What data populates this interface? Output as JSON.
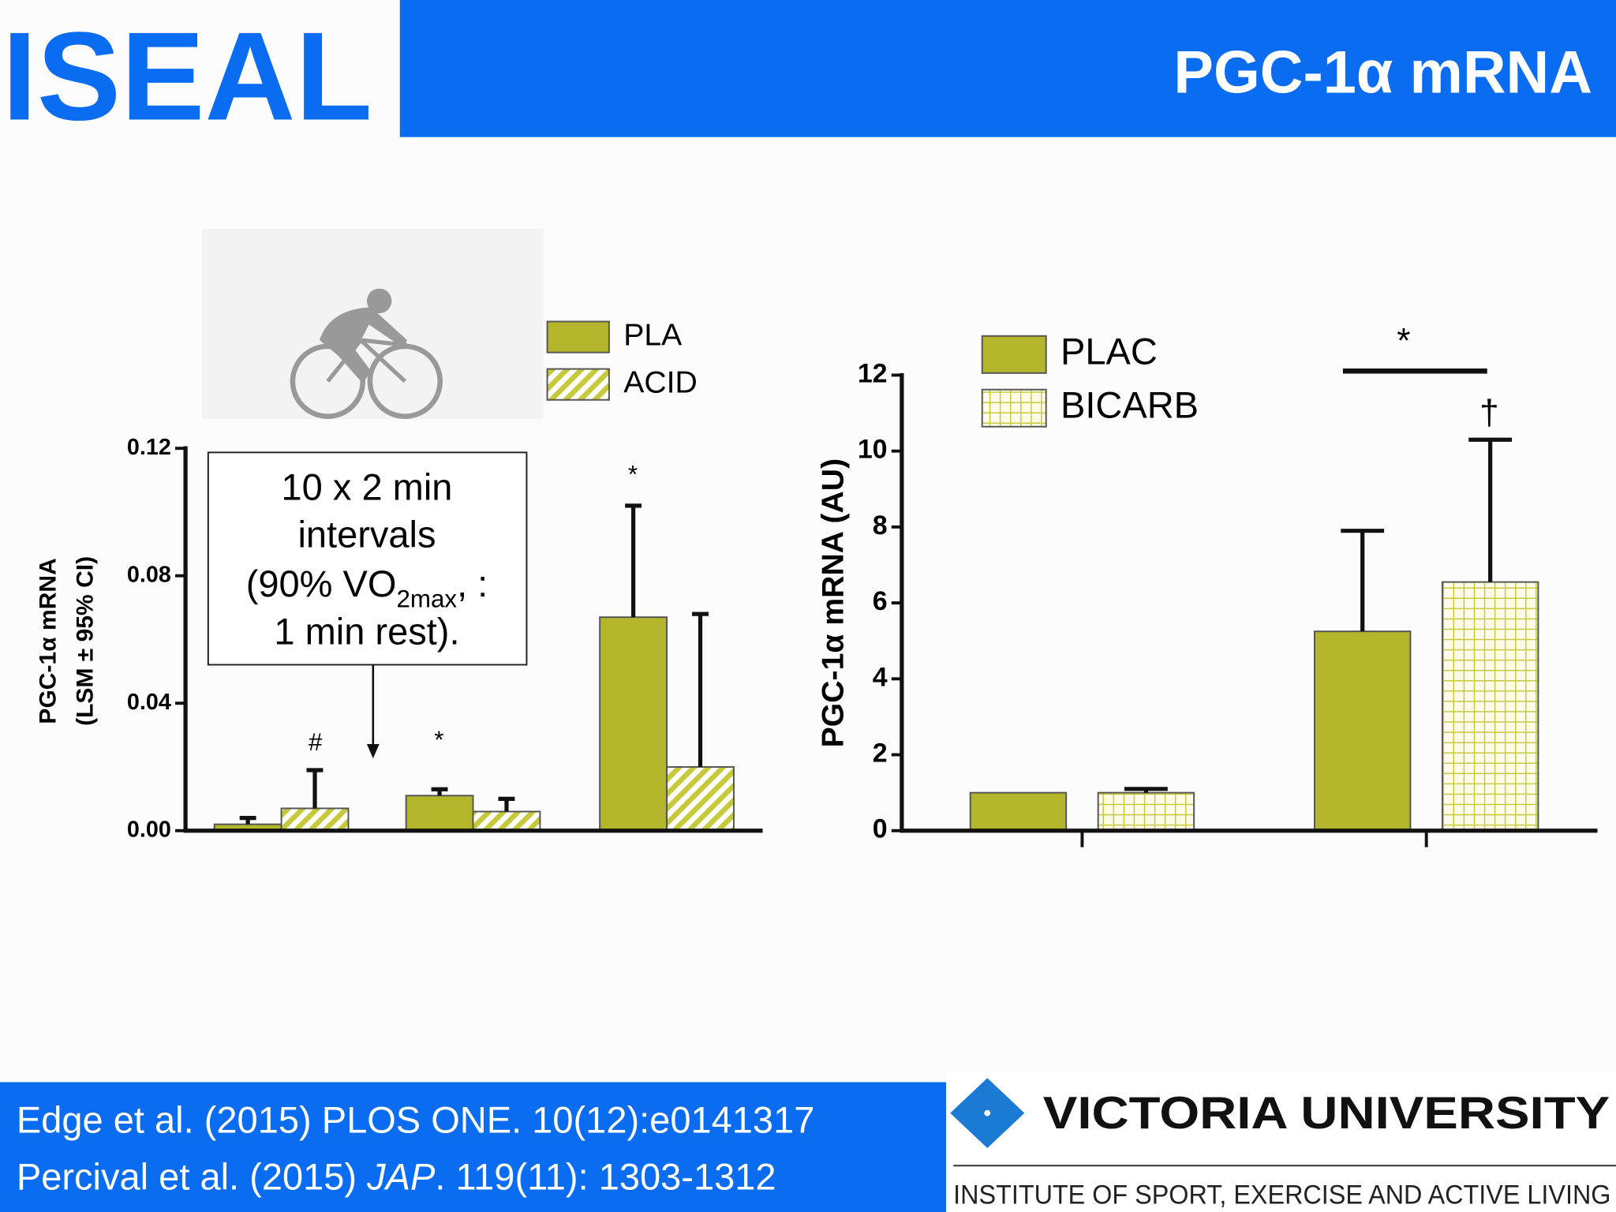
{
  "header": {
    "logo": "ISEAL",
    "title": "PGC-1α mRNA"
  },
  "chart_data": [
    {
      "type": "bar",
      "y_label": [
        "PGC-1α mRNA",
        "(LSM ± 95% CI)"
      ],
      "categories": [
        null,
        null,
        null
      ],
      "series": [
        {
          "name": "PLA",
          "color": "#b3b62a",
          "pattern": "solid",
          "values": [
            0.002,
            0.011,
            0.067
          ],
          "errors": [
            0.002,
            0.002,
            0.035
          ]
        },
        {
          "name": "ACID",
          "color": "#c5c93a",
          "pattern": "diagonal",
          "values": [
            0.007,
            0.006,
            0.02
          ],
          "errors": [
            0.012,
            0.004,
            0.048
          ]
        }
      ],
      "ylim": [
        0,
        0.12
      ],
      "yticks": [
        {
          "value": 0,
          "label": "0.00"
        },
        {
          "value": 0.04,
          "label": "0.04"
        },
        {
          "value": 0.08,
          "label": "0.08"
        },
        {
          "value": 0.12,
          "label": "0.12"
        }
      ],
      "annotations": [
        "#",
        "*",
        "*"
      ],
      "box_lines": [
        "10 x 2 min",
        "intervals",
        [
          "(90% VO",
          "2max",
          ", :"
        ],
        "1 min rest)."
      ]
    },
    {
      "type": "bar",
      "y_label": [
        "PGC-1α mRNA  (AU)"
      ],
      "categories": [
        null,
        null
      ],
      "series": [
        {
          "name": "PLAC",
          "color": "#b3b62a",
          "pattern": "solid",
          "values": [
            1.0,
            5.25
          ],
          "errors": [
            null,
            2.65
          ]
        },
        {
          "name": "BICARB",
          "color": "#c5c93a",
          "pattern": "grid",
          "values": [
            1.0,
            6.55
          ],
          "errors": [
            0.1,
            3.75
          ]
        }
      ],
      "ylim": [
        0,
        12
      ],
      "yticks": [
        0,
        2,
        4,
        6,
        8,
        10,
        12
      ],
      "annotations": [
        "*",
        "†"
      ]
    }
  ],
  "footer": {
    "citations": [
      [
        "Edge et al. (2015) PLOS ONE. 10(12):e0141317"
      ],
      [
        "Percival et al. (2015) ",
        "JAP",
        ". 119(11): 1303-1312"
      ]
    ],
    "logo_name": "VICTORIA UNIVERSITY",
    "logo_subtitle": "INSTITUTE OF SPORT, EXERCISE AND ACTIVE LIVING"
  }
}
